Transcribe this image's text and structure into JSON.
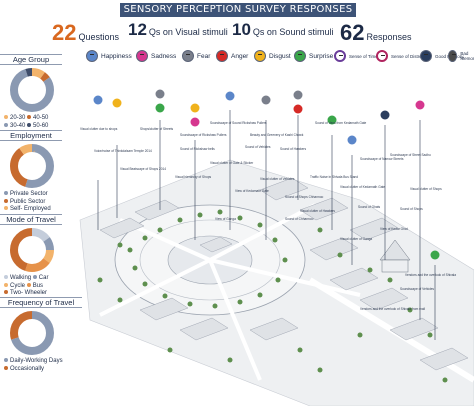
{
  "title": "SENSORY PERCEPTION SURVEY RESPONSES",
  "stats": {
    "questions_num": "22",
    "questions_label": "Questions",
    "visual_num": "12",
    "visual_label": "Qs on Visual stimuli",
    "sound_num": "10",
    "sound_label": "Qs on Sound stimuli",
    "responses_num": "62",
    "responses_label": "Responses"
  },
  "emotions": [
    {
      "label": "Happiness",
      "color": "#5b86c9"
    },
    {
      "label": "Sadness",
      "color": "#d6378f"
    },
    {
      "label": "Fear",
      "color": "#7a7f8b"
    },
    {
      "label": "Anger",
      "color": "#d62a26"
    },
    {
      "label": "Disgust",
      "color": "#f0b21c"
    },
    {
      "label": "Surprise",
      "color": "#3aa64a"
    },
    {
      "label": "Sense of Time",
      "color": "#6a3d9a"
    },
    {
      "label": "Sense of Distress",
      "color": "#b0245f"
    },
    {
      "label": "Good Memory",
      "color": "#2b3e5e"
    },
    {
      "label": "Bad Memory",
      "color": "#4a4a4a"
    }
  ],
  "sidebar": {
    "age_group": {
      "title": "Age Group",
      "segments": [
        {
          "label": "20-30",
          "color": "#f2b36b",
          "share": 0.1
        },
        {
          "label": "40-50",
          "color": "#c76b2f",
          "share": 0.05
        },
        {
          "label": "30-40",
          "color": "#8a99b2",
          "share": 0.8
        },
        {
          "label": "50-60",
          "color": "#3f4d6a",
          "share": 0.05
        }
      ]
    },
    "employment": {
      "title": "Employment",
      "segments": [
        {
          "label": "Private Sector",
          "color": "#8a99b2",
          "share": 0.55
        },
        {
          "label": "Public Sector",
          "color": "#c76b2f",
          "share": 0.35
        },
        {
          "label": "Self- Employed",
          "color": "#f2b36b",
          "share": 0.1
        }
      ]
    },
    "travel_mode": {
      "title": "Mode of Travel",
      "segments": [
        {
          "label": "Walking",
          "color": "#c4cddb",
          "share": 0.15
        },
        {
          "label": "Car",
          "color": "#8a99b2",
          "share": 0.1
        },
        {
          "label": "Cycle",
          "color": "#f2b36b",
          "share": 0.1
        },
        {
          "label": "Bus",
          "color": "#e6924a",
          "share": 0.2
        },
        {
          "label": "Two- Wheeler",
          "color": "#c76b2f",
          "share": 0.45
        }
      ]
    },
    "travel_freq": {
      "title": "Frequency of Travel",
      "segments": [
        {
          "label": "Daily-Working Days",
          "color": "#8a99b2",
          "share": 0.7
        },
        {
          "label": "Occasionally",
          "color": "#c76b2f",
          "share": 0.3
        }
      ]
    }
  },
  "map_labels": [
    "Visual clutter due to shops",
    "Voice/noise of Thinkdalsam Temple 2014",
    "Shops/clutter of Streets",
    "Soundscape of Rickshaw Pullers",
    "Soundscape of Sound Rickshaw Pullers",
    "Sound of Rickshaw bells",
    "Visual Beatscape of Shops 2014",
    "Visual hierarchy of Shops",
    "Visual clutter of Gate & Sticker",
    "Sound of Vehicles",
    "Beauty and Greenery of Kashi Chowk",
    "Sound of Hawkers",
    "Visual clutter of Vehicles",
    "Sound of Vans from Kedarnath Gate",
    "Traffic Noise in Shivala Bus Stand",
    "Sound of Shops Chhannoo",
    "Sound of Chhannoo",
    "Soundscape of Narrow Streets",
    "View of Kedarnath Gate",
    "Visual clutter of Hawkers",
    "Visual clutter of Kedarnath Gate",
    "Soundscape of Street Sadhu",
    "View of Ganga",
    "View of Kedar Ghat",
    "Visual clutter of Ganga",
    "Sound of Ghats",
    "Visual clutter of Shops",
    "Sound of Shops",
    "Vendors and the overlook of Shivala",
    "Soundscape of Vehicles",
    "Vendors and the overlook of Shivala from mall"
  ]
}
